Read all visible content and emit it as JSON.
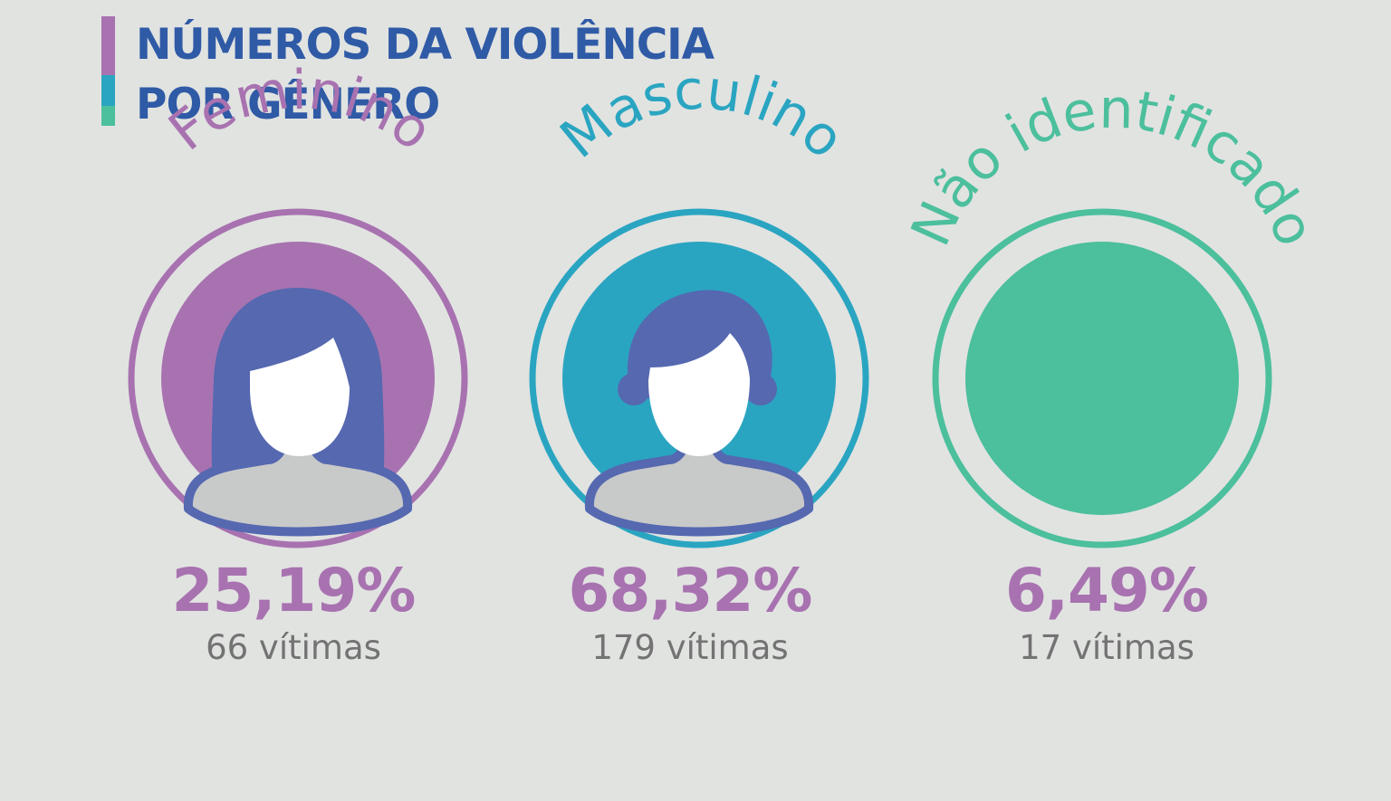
{
  "header": {
    "title_line1": "NÚMEROS DA VIOLÊNCIA",
    "title_line2": "POR GÊNERO",
    "bar_colors": [
      "#a872b0",
      "#2aa5c1",
      "#4cbf9d"
    ]
  },
  "groups": [
    {
      "label": "Feminino",
      "percent": "25,19%",
      "victims": "66 vítimas",
      "value": 25.19,
      "count": 66,
      "color": "#a872b0",
      "icon": "woman-silhouette-icon"
    },
    {
      "label": "Masculino",
      "percent": "68,32%",
      "victims": "179 vítimas",
      "value": 68.32,
      "count": 179,
      "color": "#2aa5c1",
      "icon": "man-silhouette-icon"
    },
    {
      "label": "Não identificado",
      "percent": "6,49%",
      "victims": "17 vítimas",
      "value": 6.49,
      "count": 17,
      "color": "#4cbf9d",
      "icon": "filled-circle-icon"
    }
  ],
  "colors": {
    "background": "#e1e3e1",
    "title": "#2f5aa6",
    "percent": "#a872b0",
    "victims": "#737373",
    "silhouette": "#5568b0",
    "face": "#ffffff",
    "body_fill": "#c8c9c9"
  }
}
